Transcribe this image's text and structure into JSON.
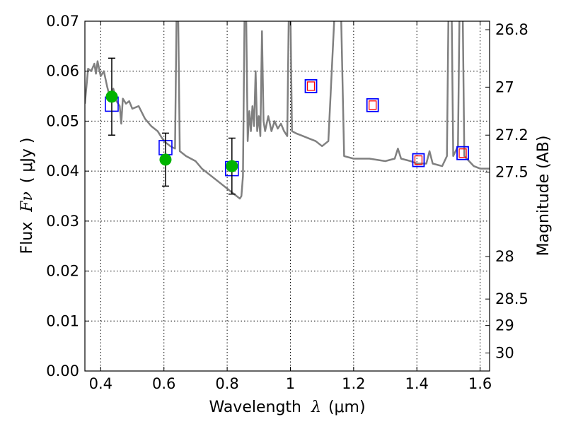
{
  "chart_data": {
    "type": "scatter",
    "xlabel_prefix": "Wavelength",
    "xlabel_symbol": "λ",
    "xlabel_unit": "(μm)",
    "ylabel_prefix": "Flux",
    "ylabel_symbol": "Fν",
    "ylabel_unit": "( μJy )",
    "y2label": "Magnitude (AB)",
    "xlim": [
      0.35,
      1.63
    ],
    "ylim": [
      0.0,
      0.07
    ],
    "grid": true,
    "x_ticks": [
      {
        "value": 0.4,
        "label": "0.4"
      },
      {
        "value": 0.6,
        "label": "0.6"
      },
      {
        "value": 0.8,
        "label": "0.8"
      },
      {
        "value": 1.0,
        "label": "1"
      },
      {
        "value": 1.2,
        "label": "1.2"
      },
      {
        "value": 1.4,
        "label": "1.4"
      },
      {
        "value": 1.6,
        "label": "1.6"
      }
    ],
    "y_ticks": [
      {
        "value": 0.0,
        "label": "0.00"
      },
      {
        "value": 0.01,
        "label": "0.01"
      },
      {
        "value": 0.02,
        "label": "0.02"
      },
      {
        "value": 0.03,
        "label": "0.03"
      },
      {
        "value": 0.04,
        "label": "0.04"
      },
      {
        "value": 0.05,
        "label": "0.05"
      },
      {
        "value": 0.06,
        "label": "0.06"
      },
      {
        "value": 0.07,
        "label": "0.07"
      }
    ],
    "y2_ticks": [
      {
        "flux": 0.0683,
        "label": "26.8"
      },
      {
        "flux": 0.0568,
        "label": "27"
      },
      {
        "flux": 0.0472,
        "label": "27.2"
      },
      {
        "flux": 0.0398,
        "label": "27.5"
      },
      {
        "flux": 0.0229,
        "label": "28"
      },
      {
        "flux": 0.0144,
        "label": "28.5"
      },
      {
        "flux": 0.0091,
        "label": "29"
      },
      {
        "flux": 0.0036,
        "label": "30"
      }
    ],
    "colors": {
      "spectrum": "#808080",
      "observed": "#00b400",
      "model_box": "#0000ff",
      "model_inner": "#ff0000"
    },
    "series": [
      {
        "kind": "spectrum",
        "points": [
          [
            0.35,
            0.0535
          ],
          [
            0.36,
            0.0605
          ],
          [
            0.37,
            0.06
          ],
          [
            0.38,
            0.0615
          ],
          [
            0.385,
            0.0595
          ],
          [
            0.39,
            0.062
          ],
          [
            0.4,
            0.059
          ],
          [
            0.41,
            0.06
          ],
          [
            0.42,
            0.057
          ],
          [
            0.43,
            0.0545
          ],
          [
            0.44,
            0.0565
          ],
          [
            0.45,
            0.054
          ],
          [
            0.46,
            0.053
          ],
          [
            0.465,
            0.0495
          ],
          [
            0.47,
            0.0545
          ],
          [
            0.48,
            0.0535
          ],
          [
            0.49,
            0.054
          ],
          [
            0.5,
            0.0525
          ],
          [
            0.52,
            0.053
          ],
          [
            0.54,
            0.0505
          ],
          [
            0.56,
            0.049
          ],
          [
            0.58,
            0.048
          ],
          [
            0.6,
            0.046
          ],
          [
            0.62,
            0.045
          ],
          [
            0.635,
            0.0445
          ],
          [
            0.64,
            0.072
          ],
          [
            0.645,
            0.072
          ],
          [
            0.65,
            0.044
          ],
          [
            0.67,
            0.043
          ],
          [
            0.7,
            0.042
          ],
          [
            0.72,
            0.0405
          ],
          [
            0.75,
            0.039
          ],
          [
            0.78,
            0.0375
          ],
          [
            0.8,
            0.0365
          ],
          [
            0.82,
            0.0355
          ],
          [
            0.83,
            0.035
          ],
          [
            0.84,
            0.0345
          ],
          [
            0.845,
            0.035
          ],
          [
            0.85,
            0.039
          ],
          [
            0.855,
            0.072
          ],
          [
            0.86,
            0.072
          ],
          [
            0.865,
            0.046
          ],
          [
            0.87,
            0.052
          ],
          [
            0.875,
            0.048
          ],
          [
            0.88,
            0.053
          ],
          [
            0.885,
            0.049
          ],
          [
            0.89,
            0.06
          ],
          [
            0.895,
            0.048
          ],
          [
            0.9,
            0.051
          ],
          [
            0.905,
            0.047
          ],
          [
            0.91,
            0.068
          ],
          [
            0.915,
            0.05
          ],
          [
            0.92,
            0.048
          ],
          [
            0.93,
            0.051
          ],
          [
            0.94,
            0.048
          ],
          [
            0.95,
            0.05
          ],
          [
            0.96,
            0.0485
          ],
          [
            0.97,
            0.0495
          ],
          [
            0.98,
            0.048
          ],
          [
            0.99,
            0.047
          ],
          [
            0.995,
            0.072
          ],
          [
            1.0,
            0.072
          ],
          [
            1.005,
            0.048
          ],
          [
            1.02,
            0.0475
          ],
          [
            1.04,
            0.047
          ],
          [
            1.06,
            0.0465
          ],
          [
            1.08,
            0.046
          ],
          [
            1.1,
            0.045
          ],
          [
            1.12,
            0.046
          ],
          [
            1.14,
            0.072
          ],
          [
            1.16,
            0.072
          ],
          [
            1.17,
            0.043
          ],
          [
            1.2,
            0.0425
          ],
          [
            1.25,
            0.0425
          ],
          [
            1.3,
            0.042
          ],
          [
            1.33,
            0.0425
          ],
          [
            1.34,
            0.0445
          ],
          [
            1.35,
            0.0425
          ],
          [
            1.38,
            0.042
          ],
          [
            1.4,
            0.0415
          ],
          [
            1.43,
            0.0415
          ],
          [
            1.44,
            0.044
          ],
          [
            1.45,
            0.0415
          ],
          [
            1.48,
            0.041
          ],
          [
            1.495,
            0.043
          ],
          [
            1.5,
            0.072
          ],
          [
            1.51,
            0.072
          ],
          [
            1.515,
            0.043
          ],
          [
            1.53,
            0.045
          ],
          [
            1.535,
            0.072
          ],
          [
            1.545,
            0.072
          ],
          [
            1.55,
            0.043
          ],
          [
            1.58,
            0.041
          ],
          [
            1.6,
            0.0405
          ],
          [
            1.63,
            0.0405
          ]
        ]
      },
      {
        "kind": "observed",
        "points": [
          {
            "x": 0.435,
            "y": 0.0549,
            "yerr": 0.0077
          },
          {
            "x": 0.605,
            "y": 0.0423,
            "yerr": 0.0053
          },
          {
            "x": 0.815,
            "y": 0.041,
            "yerr": 0.0056
          }
        ]
      },
      {
        "kind": "model",
        "points": [
          {
            "x": 0.435,
            "y": 0.0534,
            "size": "large"
          },
          {
            "x": 0.605,
            "y": 0.0447,
            "size": "large"
          },
          {
            "x": 0.815,
            "y": 0.0405,
            "size": "large"
          },
          {
            "x": 1.065,
            "y": 0.057,
            "size": "small"
          },
          {
            "x": 1.26,
            "y": 0.0532,
            "size": "small"
          },
          {
            "x": 1.405,
            "y": 0.0422,
            "size": "small"
          },
          {
            "x": 1.545,
            "y": 0.0436,
            "size": "small"
          }
        ]
      }
    ]
  }
}
